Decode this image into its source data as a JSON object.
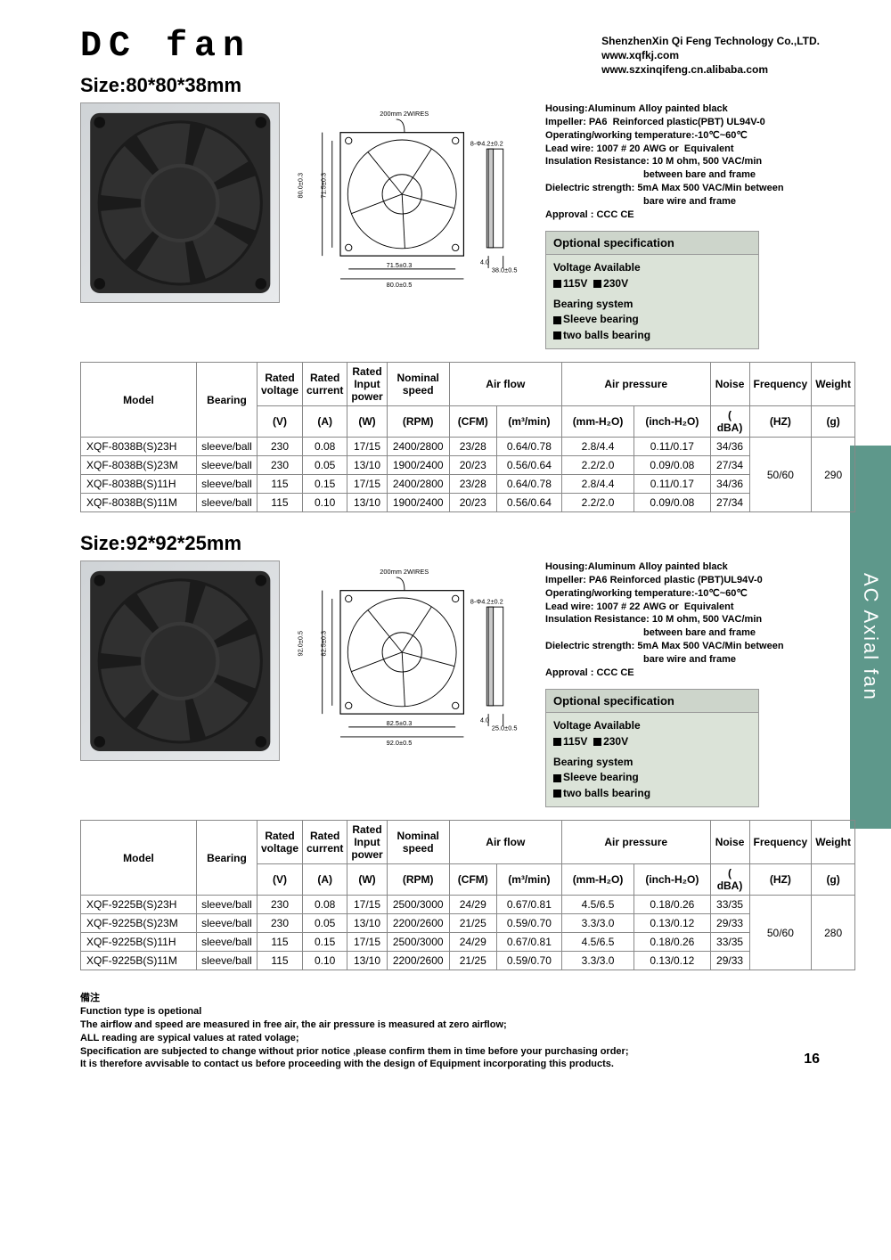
{
  "header": {
    "title": "DC fan",
    "company": "ShenzhenXin Qi Feng Technology Co.,LTD.",
    "url1": "www.xqfkj.com",
    "url2": "www.szxinqifeng.cn.alibaba.com"
  },
  "sideTab": "AC Axial fan",
  "pageNumber": "16",
  "colors": {
    "tab_bg": "#5e988b",
    "opt_bg": "#dbe3d8",
    "opt_hdr_bg": "#cdd5cb",
    "border": "#888888",
    "text": "#000000",
    "photo_bg1": "#cfd3d6",
    "photo_bg2": "#e8eaec"
  },
  "sections": [
    {
      "sizeLabel": "Size:80*80*38mm",
      "diagram": {
        "topLabel": "200mm 2WIRES",
        "rightLabel": "8-Φ4.2±0.2",
        "vDim1": "80.0±0.3",
        "vDim2": "71.5±0.3",
        "hDim1": "71.5±0.3",
        "hDim2": "80.0±0.5",
        "depthHole": "4.0",
        "depthBody": "38.0±0.5"
      },
      "specLines": [
        "Housing:Aluminum Alloy painted black",
        "Impeller: PA6  Reinforced plastic(PBT) UL94V-0",
        "Operating/working temperature:-10℃~60℃",
        "Lead wire: 1007 # 20 AWG or  Equivalent",
        "Insulation Resistance: 10 M ohm, 500 VAC/min",
        "                                    between bare and frame",
        "Dielectric strength: 5mA Max 500 VAC/Min between",
        "                                    bare wire and frame",
        "Approval : CCC CE"
      ],
      "optBox": {
        "title": "Optional specification",
        "voltageLabel": "Voltage Available",
        "voltages": [
          "115V",
          "230V"
        ],
        "bearingLabel": "Bearing system",
        "bearings": [
          "Sleeve bearing",
          "two balls bearing"
        ]
      },
      "table": {
        "headerRow1": [
          "Model",
          "Bearing",
          "Rated voltage",
          "Rated current",
          "Rated Input power",
          "Nominal speed",
          "Air flow",
          "Air pressure",
          "Noise",
          "Frequency",
          "Weight"
        ],
        "headerRow2": [
          "(V)",
          "(A)",
          "(W)",
          "(RPM)",
          "(CFM)",
          "(m³/min)",
          "(mm-H₂O)",
          "(inch-H₂O)",
          "( dBA)",
          "(HZ)",
          "(g)"
        ],
        "rows": [
          [
            "XQF-8038B(S)23H",
            "sleeve/ball",
            "230",
            "0.08",
            "17/15",
            "2400/2800",
            "23/28",
            "0.64/0.78",
            "2.8/4.4",
            "0.11/0.17",
            "34/36"
          ],
          [
            "XQF-8038B(S)23M",
            "sleeve/ball",
            "230",
            "0.05",
            "13/10",
            "1900/2400",
            "20/23",
            "0.56/0.64",
            "2.2/2.0",
            "0.09/0.08",
            "27/34"
          ],
          [
            "XQF-8038B(S)11H",
            "sleeve/ball",
            "115",
            "0.15",
            "17/15",
            "2400/2800",
            "23/28",
            "0.64/0.78",
            "2.8/4.4",
            "0.11/0.17",
            "34/36"
          ],
          [
            "XQF-8038B(S)11M",
            "sleeve/ball",
            "115",
            "0.10",
            "13/10",
            "1900/2400",
            "20/23",
            "0.56/0.64",
            "2.2/2.0",
            "0.09/0.08",
            "27/34"
          ]
        ],
        "freq": "50/60",
        "weight": "290"
      }
    },
    {
      "sizeLabel": "Size:92*92*25mm",
      "diagram": {
        "topLabel": "200mm 2WIRES",
        "rightLabel": "8-Φ4.2±0.2",
        "vDim1": "92.0±0.5",
        "vDim2": "82.5±0.3",
        "hDim1": "82.5±0.3",
        "hDim2": "92.0±0.5",
        "depthHole": "4.0",
        "depthBody": "25.0±0.5"
      },
      "specLines": [
        "Housing:Aluminum Alloy painted black",
        "Impeller: PA6 Reinforced plastic (PBT)UL94V-0",
        "Operating/working temperature:-10℃~60℃",
        "Lead wire: 1007 # 22 AWG or  Equivalent",
        "Insulation Resistance: 10 M ohm, 500 VAC/min",
        "                                    between bare and frame",
        "Dielectric strength: 5mA Max 500 VAC/Min between",
        "                                    bare wire and frame",
        "Approval : CCC CE"
      ],
      "optBox": {
        "title": "Optional specification",
        "voltageLabel": "Voltage Available",
        "voltages": [
          "115V",
          "230V"
        ],
        "bearingLabel": "Bearing system",
        "bearings": [
          "Sleeve bearing",
          "two balls bearing"
        ]
      },
      "table": {
        "headerRow1": [
          "Model",
          "Bearing",
          "Rated voltage",
          "Rated current",
          "Rated Input power",
          "Nominal speed",
          "Air flow",
          "Air pressure",
          "Noise",
          "Frequency",
          "Weight"
        ],
        "headerRow2": [
          "(V)",
          "(A)",
          "(W)",
          "(RPM)",
          "(CFM)",
          "(m³/min)",
          "(mm-H₂O)",
          "(inch-H₂O)",
          "( dBA)",
          "(HZ)",
          "(g)"
        ],
        "rows": [
          [
            "XQF-9225B(S)23H",
            "sleeve/ball",
            "230",
            "0.08",
            "17/15",
            "2500/3000",
            "24/29",
            "0.67/0.81",
            "4.5/6.5",
            "0.18/0.26",
            "33/35"
          ],
          [
            "XQF-9225B(S)23M",
            "sleeve/ball",
            "230",
            "0.05",
            "13/10",
            "2200/2600",
            "21/25",
            "0.59/0.70",
            "3.3/3.0",
            "0.13/0.12",
            "29/33"
          ],
          [
            "XQF-9225B(S)11H",
            "sleeve/ball",
            "115",
            "0.15",
            "17/15",
            "2500/3000",
            "24/29",
            "0.67/0.81",
            "4.5/6.5",
            "0.18/0.26",
            "33/35"
          ],
          [
            "XQF-9225B(S)11M",
            "sleeve/ball",
            "115",
            "0.10",
            "13/10",
            "2200/2600",
            "21/25",
            "0.59/0.70",
            "3.3/3.0",
            "0.13/0.12",
            "29/33"
          ]
        ],
        "freq": "50/60",
        "weight": "280"
      }
    }
  ],
  "notes": {
    "heading": "備注",
    "lines": [
      "Function type is opetional",
      "The airflow and speed are measured in free air, the air pressure is measured at zero airflow;",
      "ALL reading are sypical values at rated volage;",
      "Specification are subjected to change without prior notice ,please confirm them in time before your purchasing order;",
      "It is therefore avvisable to contact us before proceeding with the design of Equipment incorporating this products."
    ]
  }
}
